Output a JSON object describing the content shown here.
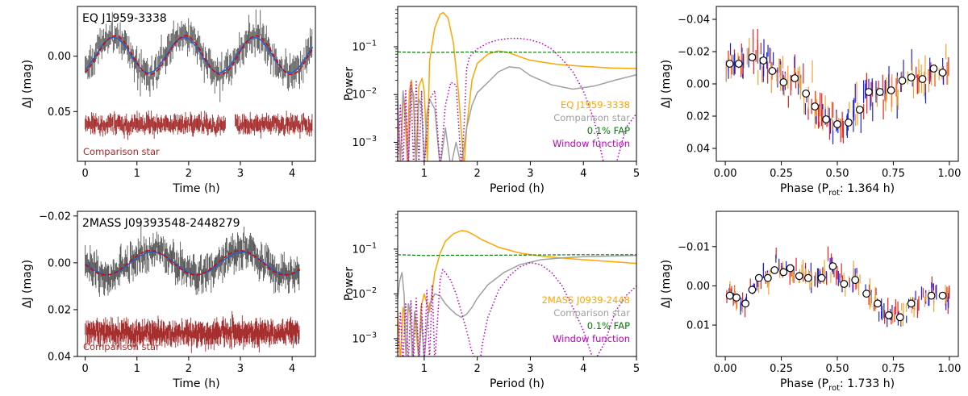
{
  "colors": {
    "target": "#ffa500",
    "comparison": "#a0a0a0",
    "fap": "#008000",
    "window": "#c000c0",
    "lc_points": "#555555",
    "lc_comparison": "#a52a2a",
    "fit_blue": "#1f5fd0",
    "fit_red": "#e00000",
    "phase_red": "#e82020",
    "phase_blue": "#2020e0",
    "phase_orange": "#f5a030"
  },
  "chart_data": [
    {
      "id": "lc1",
      "type": "scatter",
      "panel": "light-curve",
      "star_label": "EQ J1959-3338",
      "xlabel": "Time (h)",
      "ylabel": "ΔJ (mag)",
      "xlim": [
        -0.15,
        4.45
      ],
      "ylim": [
        0.095,
        -0.045
      ],
      "invert_y": true,
      "xticks": [
        0,
        1,
        2,
        3,
        4
      ],
      "xtick_labels": [
        "0",
        "1",
        "2",
        "3",
        "4"
      ],
      "yticks": [
        0.0,
        0.05
      ],
      "ytick_labels": [
        "0.00",
        "0.05"
      ],
      "comparison_label": "Comparison star",
      "series": [
        {
          "name": "EQ J1959-3338 data",
          "t_range": [
            0,
            4.4
          ],
          "n": 260,
          "amplitude": 0.017,
          "period_h": 1.364,
          "phase": 0.35,
          "offset": -0.001,
          "scatter": 0.009
        },
        {
          "name": "Comparison star",
          "t_range": [
            0,
            4.4
          ],
          "gap": [
            2.72,
            2.9
          ],
          "n": 320,
          "offset": 0.062,
          "scatter": 0.004
        },
        {
          "name": "fit blue",
          "kind": "line",
          "amplitude": 0.016,
          "period_h": 1.364,
          "phase": 0.35,
          "offset": -0.001
        },
        {
          "name": "fit red",
          "kind": "dashed",
          "amplitude": 0.0175,
          "period_h": 1.364,
          "phase": 0.33,
          "offset": -0.001
        }
      ]
    },
    {
      "id": "pg1",
      "type": "line",
      "panel": "periodogram",
      "xlabel": "Period (h)",
      "ylabel": "Power",
      "yscale": "log",
      "xlim": [
        0.5,
        5.0
      ],
      "ylim": [
        0.0004,
        0.7
      ],
      "xticks": [
        1,
        2,
        3,
        4,
        5
      ],
      "xtick_labels": [
        "1",
        "2",
        "3",
        "4",
        "5"
      ],
      "yticks": [
        0.001,
        0.01,
        0.1
      ],
      "ytick_labels": [
        "10",
        "10",
        "10"
      ],
      "ytick_exponents": [
        "−3",
        "−2",
        "−1"
      ],
      "legend": [
        "EQ J1959-3338",
        "Comparison star",
        "0.1% FAP",
        "Window function"
      ],
      "legend_position": "lower-right",
      "series": [
        {
          "name": "EQ J1959-3338",
          "period_h": [
            0.5,
            0.55,
            0.6,
            0.62,
            0.68,
            0.72,
            0.76,
            0.8,
            0.84,
            0.9,
            0.96,
            1.0,
            1.06,
            1.1,
            1.2,
            1.3,
            1.36,
            1.45,
            1.55,
            1.65,
            1.75,
            1.8,
            1.9,
            2.0,
            2.2,
            2.4,
            2.6,
            2.8,
            3.0,
            3.5,
            4.0,
            4.5,
            5.0
          ],
          "power": [
            0.006,
            0.0003,
            0.006,
            0.008,
            0.0004,
            0.012,
            0.02,
            0.006,
            0.0004,
            0.015,
            0.022,
            0.012,
            0.0004,
            0.05,
            0.25,
            0.48,
            0.52,
            0.4,
            0.12,
            0.01,
            0.0003,
            0.002,
            0.02,
            0.045,
            0.07,
            0.082,
            0.075,
            0.062,
            0.052,
            0.043,
            0.039,
            0.036,
            0.035
          ]
        },
        {
          "name": "Comparison star",
          "period_h": [
            0.5,
            0.55,
            0.6,
            0.65,
            0.7,
            0.75,
            0.8,
            0.85,
            0.9,
            0.95,
            1.0,
            1.05,
            1.1,
            1.2,
            1.3,
            1.4,
            1.5,
            1.6,
            1.7,
            1.8,
            1.9,
            2.0,
            2.1,
            2.2,
            2.4,
            2.6,
            2.8,
            3.0,
            3.4,
            3.8,
            4.2,
            4.6,
            5.0
          ],
          "power": [
            0.008,
            0.0004,
            0.012,
            0.004,
            0.0003,
            0.015,
            0.01,
            0.0003,
            0.008,
            0.006,
            0.0003,
            0.004,
            0.008,
            0.005,
            0.0003,
            0.002,
            0.0003,
            0.001,
            0.0003,
            0.002,
            0.006,
            0.011,
            0.014,
            0.018,
            0.03,
            0.038,
            0.036,
            0.025,
            0.016,
            0.013,
            0.015,
            0.02,
            0.026
          ]
        },
        {
          "name": "0.1% FAP",
          "kind": "dashed",
          "period_h": [
            0.5,
            1,
            1.5,
            2,
            3,
            4,
            5
          ],
          "power": [
            0.078,
            0.076,
            0.077,
            0.078,
            0.077,
            0.077,
            0.077
          ]
        },
        {
          "name": "Window function",
          "kind": "dotted",
          "period_h": [
            0.5,
            0.55,
            0.6,
            0.65,
            0.7,
            0.75,
            0.8,
            0.85,
            0.9,
            0.95,
            1.0,
            1.1,
            1.2,
            1.3,
            1.4,
            1.5,
            1.6,
            1.7,
            1.75,
            1.8,
            1.85,
            1.9,
            2.0,
            2.2,
            2.4,
            2.6,
            2.8,
            3.0,
            3.2,
            3.4,
            3.6,
            3.8,
            4.0,
            4.2,
            4.4,
            4.6,
            4.8,
            5.0
          ],
          "power": [
            0.0003,
            0.006,
            0.0003,
            0.012,
            0.0003,
            0.018,
            0.0003,
            0.02,
            0.0003,
            0.012,
            0.0003,
            0.008,
            0.012,
            0.0003,
            0.006,
            0.018,
            0.016,
            0.0003,
            0.002,
            0.035,
            0.06,
            0.07,
            0.09,
            0.12,
            0.14,
            0.15,
            0.15,
            0.14,
            0.12,
            0.09,
            0.055,
            0.03,
            0.012,
            0.003,
            0.0003,
            0.0003,
            0.002,
            0.004
          ]
        }
      ]
    },
    {
      "id": "ph1",
      "type": "scatter",
      "panel": "phase",
      "xlabel": "Phase (P",
      "xlabel_sub": "rot",
      "xlabel_rest": ": 1.364 h)",
      "ylabel": "ΔJ (mag)",
      "xlim": [
        -0.04,
        1.04
      ],
      "ylim": [
        0.048,
        -0.048
      ],
      "invert_y": true,
      "xticks": [
        0,
        0.25,
        0.5,
        0.75,
        1.0
      ],
      "xtick_labels": [
        "0.00",
        "0.25",
        "0.50",
        "0.75",
        "1.00"
      ],
      "yticks": [
        -0.04,
        -0.02,
        0.0,
        0.02,
        0.04
      ],
      "ytick_labels": [
        "−0.04",
        "−0.02",
        "0.00",
        "0.02",
        "0.04"
      ],
      "binned_phase": [
        0.02,
        0.06,
        0.12,
        0.17,
        0.21,
        0.26,
        0.31,
        0.36,
        0.4,
        0.45,
        0.5,
        0.55,
        0.6,
        0.64,
        0.69,
        0.74,
        0.79,
        0.83,
        0.88,
        0.93,
        0.97
      ],
      "binned_dj": [
        -0.0125,
        -0.0125,
        -0.0165,
        -0.0145,
        -0.008,
        -0.001,
        -0.0035,
        0.006,
        0.014,
        0.022,
        0.025,
        0.024,
        0.016,
        0.005,
        0.005,
        0.004,
        -0.002,
        -0.004,
        -0.003,
        -0.0095,
        -0.007
      ],
      "scatter_amplitude": 0.019,
      "scatter_offset": 0.006
    },
    {
      "id": "lc2",
      "type": "scatter",
      "panel": "light-curve",
      "star_label": "2MASS J09393548-2448279",
      "xlabel": "Time (h)",
      "ylabel": "ΔJ (mag)",
      "xlim": [
        -0.15,
        4.45
      ],
      "ylim": [
        0.04,
        -0.022
      ],
      "invert_y": true,
      "xticks": [
        0,
        1,
        2,
        3,
        4
      ],
      "xtick_labels": [
        "0",
        "1",
        "2",
        "3",
        "4"
      ],
      "yticks": [
        -0.02,
        0.0,
        0.02,
        0.04
      ],
      "ytick_labels": [
        "−0.02",
        "0.00",
        "0.02",
        "0.04"
      ],
      "comparison_label": "Comparison star",
      "series": [
        {
          "name": "2MASS J0939-2448 data",
          "t_range": [
            0,
            4.15
          ],
          "n": 300,
          "amplitude": 0.005,
          "period_h": 1.733,
          "phase": 0.0,
          "offset": 0.0002,
          "scatter": 0.0045
        },
        {
          "name": "Comparison star",
          "t_range": [
            0,
            4.15
          ],
          "n": 380,
          "offset": 0.03,
          "scatter": 0.0025
        },
        {
          "name": "fit blue",
          "kind": "line",
          "amplitude": 0.0048,
          "period_h": 1.733,
          "phase": 0.0,
          "offset": 0.0002
        },
        {
          "name": "fit red",
          "kind": "dashed",
          "amplitude": 0.0052,
          "period_h": 1.733,
          "phase": 0.02,
          "offset": 0.0
        }
      ]
    },
    {
      "id": "pg2",
      "type": "line",
      "panel": "periodogram",
      "xlabel": "Period (h)",
      "ylabel": "Power",
      "yscale": "log",
      "xlim": [
        0.5,
        5.0
      ],
      "ylim": [
        0.0004,
        0.7
      ],
      "xticks": [
        1,
        2,
        3,
        4,
        5
      ],
      "xtick_labels": [
        "1",
        "2",
        "3",
        "4",
        "5"
      ],
      "yticks": [
        0.001,
        0.01,
        0.1
      ],
      "ytick_labels": [
        "10",
        "10",
        "10"
      ],
      "ytick_exponents": [
        "−3",
        "−2",
        "−1"
      ],
      "legend": [
        "2MASS J0939-2448",
        "Comparison star",
        "0.1% FAP",
        "Window function"
      ],
      "legend_position": "lower-right",
      "series": [
        {
          "name": "2MASS J0939-2448",
          "period_h": [
            0.5,
            0.55,
            0.6,
            0.62,
            0.66,
            0.7,
            0.74,
            0.78,
            0.82,
            0.86,
            0.9,
            0.94,
            1.0,
            1.05,
            1.1,
            1.2,
            1.3,
            1.4,
            1.55,
            1.7,
            1.8,
            1.9,
            2.1,
            2.4,
            2.8,
            3.2,
            3.6,
            4.0,
            4.5,
            5.0
          ],
          "power": [
            0.004,
            0.0003,
            0.005,
            0.004,
            0.0003,
            0.006,
            0.003,
            0.0003,
            0.004,
            0.001,
            0.0003,
            0.005,
            0.01,
            0.006,
            0.004,
            0.03,
            0.08,
            0.15,
            0.22,
            0.26,
            0.25,
            0.22,
            0.16,
            0.11,
            0.082,
            0.07,
            0.063,
            0.058,
            0.053,
            0.048
          ]
        },
        {
          "name": "Comparison star",
          "period_h": [
            0.5,
            0.54,
            0.58,
            0.62,
            0.66,
            0.7,
            0.74,
            0.78,
            0.82,
            0.86,
            0.9,
            0.95,
            1.0,
            1.05,
            1.1,
            1.2,
            1.3,
            1.4,
            1.5,
            1.6,
            1.7,
            1.8,
            1.9,
            2.0,
            2.2,
            2.5,
            2.8,
            3.2,
            3.6,
            4.0,
            4.5,
            5.0
          ],
          "power": [
            0.008,
            0.02,
            0.03,
            0.01,
            0.0003,
            0.006,
            0.004,
            0.0003,
            0.004,
            0.002,
            0.0003,
            0.003,
            0.0003,
            0.002,
            0.006,
            0.01,
            0.009,
            0.006,
            0.0045,
            0.0035,
            0.003,
            0.0035,
            0.005,
            0.008,
            0.016,
            0.03,
            0.045,
            0.058,
            0.064,
            0.068,
            0.07,
            0.072
          ]
        },
        {
          "name": "0.1% FAP",
          "kind": "dashed",
          "period_h": [
            0.5,
            1,
            1.5,
            2,
            3,
            4,
            5
          ],
          "power": [
            0.075,
            0.072,
            0.073,
            0.073,
            0.074,
            0.075,
            0.075
          ]
        },
        {
          "name": "Window function",
          "kind": "dotted",
          "period_h": [
            0.5,
            0.55,
            0.6,
            0.65,
            0.7,
            0.75,
            0.8,
            0.85,
            0.9,
            0.95,
            1.0,
            1.05,
            1.1,
            1.15,
            1.2,
            1.3,
            1.35,
            1.4,
            1.5,
            1.6,
            1.7,
            1.8,
            1.9,
            2.0,
            2.05,
            2.1,
            2.2,
            2.4,
            2.6,
            2.8,
            3.0,
            3.2,
            3.4,
            3.6,
            3.8,
            4.0,
            4.2,
            4.4,
            4.6,
            4.8,
            5.0
          ],
          "power": [
            0.0003,
            0.004,
            0.0003,
            0.006,
            0.0003,
            0.007,
            0.0003,
            0.008,
            0.0003,
            0.006,
            0.0003,
            0.012,
            0.0003,
            0.016,
            0.0003,
            0.02,
            0.035,
            0.03,
            0.02,
            0.01,
            0.004,
            0.0015,
            0.0005,
            0.0003,
            0.0003,
            0.0008,
            0.003,
            0.012,
            0.025,
            0.04,
            0.05,
            0.045,
            0.03,
            0.015,
            0.005,
            0.0015,
            0.0003,
            0.0008,
            0.004,
            0.009,
            0.015
          ]
        }
      ]
    },
    {
      "id": "ph2",
      "type": "scatter",
      "panel": "phase",
      "xlabel": "Phase (P",
      "xlabel_sub": "rot",
      "xlabel_rest": ": 1.733 h)",
      "ylabel": "ΔJ (mag)",
      "xlim": [
        -0.04,
        1.04
      ],
      "ylim": [
        0.018,
        -0.019
      ],
      "invert_y": true,
      "xticks": [
        0,
        0.25,
        0.5,
        0.75,
        1.0
      ],
      "xtick_labels": [
        "0.00",
        "0.25",
        "0.50",
        "0.75",
        "1.00"
      ],
      "yticks": [
        -0.01,
        0.0,
        0.01
      ],
      "ytick_labels": [
        "−0.01",
        "0.00",
        "0.01"
      ],
      "binned_phase": [
        0.02,
        0.05,
        0.09,
        0.12,
        0.15,
        0.19,
        0.22,
        0.26,
        0.29,
        0.33,
        0.37,
        0.43,
        0.48,
        0.53,
        0.58,
        0.63,
        0.68,
        0.73,
        0.78,
        0.83,
        0.92,
        0.97
      ],
      "binned_dj": [
        0.0025,
        0.003,
        0.0045,
        0.001,
        -0.002,
        -0.002,
        -0.004,
        -0.0035,
        -0.0045,
        -0.0025,
        -0.002,
        -0.002,
        -0.005,
        -0.0005,
        -0.0015,
        0.002,
        0.0045,
        0.0075,
        0.008,
        0.0045,
        0.0025,
        0.0025
      ],
      "scatter_amplitude": 0.005,
      "scatter_offset": 0.0005
    }
  ]
}
